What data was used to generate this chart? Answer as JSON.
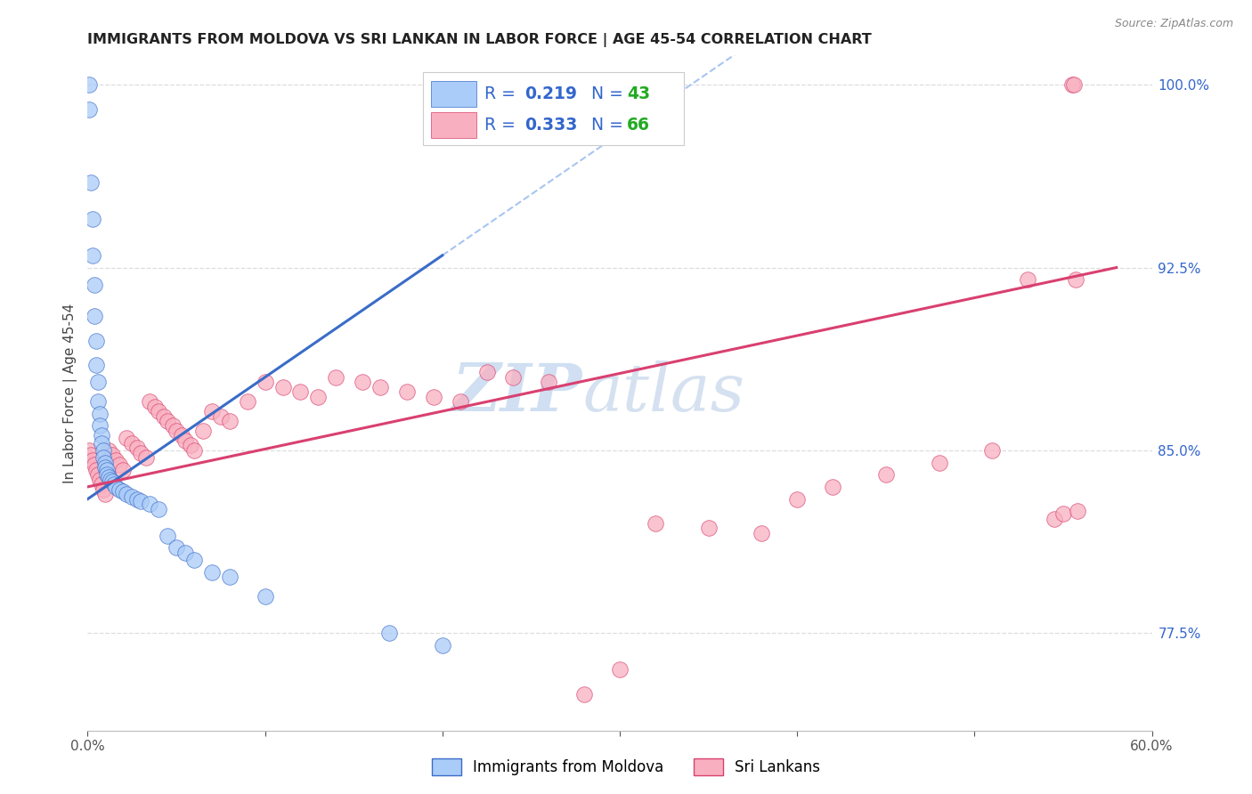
{
  "title": "IMMIGRANTS FROM MOLDOVA VS SRI LANKAN IN LABOR FORCE | AGE 45-54 CORRELATION CHART",
  "source": "Source: ZipAtlas.com",
  "ylabel": "In Labor Force | Age 45-54",
  "xlim": [
    0.0,
    0.6
  ],
  "ylim": [
    0.735,
    1.012
  ],
  "yticks_right": [
    1.0,
    0.925,
    0.85,
    0.775
  ],
  "moldova_color": "#aaccf8",
  "moldova_line_color": "#3a6cc8",
  "srilanka_color": "#f8b0c0",
  "srilanka_line_color": "#d94070",
  "R_color": "#3366cc",
  "N_color": "#22aa22",
  "moldova_label": "Immigrants from Moldova",
  "srilanka_label": "Sri Lankans",
  "moldova_R": "0.219",
  "moldova_N": "43",
  "srilanka_R": "0.333",
  "srilanka_N": "66",
  "moldova_x": [
    0.001,
    0.001,
    0.002,
    0.003,
    0.003,
    0.004,
    0.004,
    0.005,
    0.005,
    0.006,
    0.006,
    0.007,
    0.007,
    0.008,
    0.008,
    0.009,
    0.009,
    0.01,
    0.01,
    0.011,
    0.011,
    0.012,
    0.013,
    0.014,
    0.015,
    0.016,
    0.018,
    0.02,
    0.022,
    0.025,
    0.028,
    0.03,
    0.035,
    0.04,
    0.045,
    0.05,
    0.055,
    0.06,
    0.07,
    0.08,
    0.1,
    0.17,
    0.2
  ],
  "moldova_y": [
    1.0,
    0.99,
    0.96,
    0.945,
    0.93,
    0.918,
    0.905,
    0.895,
    0.885,
    0.878,
    0.87,
    0.865,
    0.86,
    0.856,
    0.853,
    0.85,
    0.847,
    0.845,
    0.843,
    0.842,
    0.84,
    0.839,
    0.838,
    0.837,
    0.836,
    0.835,
    0.834,
    0.833,
    0.832,
    0.831,
    0.83,
    0.829,
    0.828,
    0.826,
    0.815,
    0.81,
    0.808,
    0.805,
    0.8,
    0.798,
    0.79,
    0.775,
    0.77
  ],
  "srilanka_x": [
    0.001,
    0.002,
    0.003,
    0.004,
    0.005,
    0.006,
    0.007,
    0.008,
    0.009,
    0.01,
    0.012,
    0.014,
    0.016,
    0.018,
    0.02,
    0.022,
    0.025,
    0.028,
    0.03,
    0.033,
    0.035,
    0.038,
    0.04,
    0.043,
    0.045,
    0.048,
    0.05,
    0.053,
    0.055,
    0.058,
    0.06,
    0.065,
    0.07,
    0.075,
    0.08,
    0.09,
    0.1,
    0.11,
    0.12,
    0.13,
    0.14,
    0.155,
    0.165,
    0.18,
    0.195,
    0.21,
    0.225,
    0.24,
    0.26,
    0.28,
    0.3,
    0.32,
    0.35,
    0.38,
    0.4,
    0.42,
    0.45,
    0.48,
    0.51,
    0.53,
    0.545,
    0.55,
    0.555,
    0.556,
    0.557,
    0.558
  ],
  "srilanka_y": [
    0.85,
    0.848,
    0.846,
    0.844,
    0.842,
    0.84,
    0.838,
    0.836,
    0.834,
    0.832,
    0.85,
    0.848,
    0.846,
    0.844,
    0.842,
    0.855,
    0.853,
    0.851,
    0.849,
    0.847,
    0.87,
    0.868,
    0.866,
    0.864,
    0.862,
    0.86,
    0.858,
    0.856,
    0.854,
    0.852,
    0.85,
    0.858,
    0.866,
    0.864,
    0.862,
    0.87,
    0.878,
    0.876,
    0.874,
    0.872,
    0.88,
    0.878,
    0.876,
    0.874,
    0.872,
    0.87,
    0.882,
    0.88,
    0.878,
    0.75,
    0.76,
    0.82,
    0.818,
    0.816,
    0.83,
    0.835,
    0.84,
    0.845,
    0.85,
    0.92,
    0.822,
    0.824,
    1.0,
    1.0,
    0.92,
    0.825
  ]
}
